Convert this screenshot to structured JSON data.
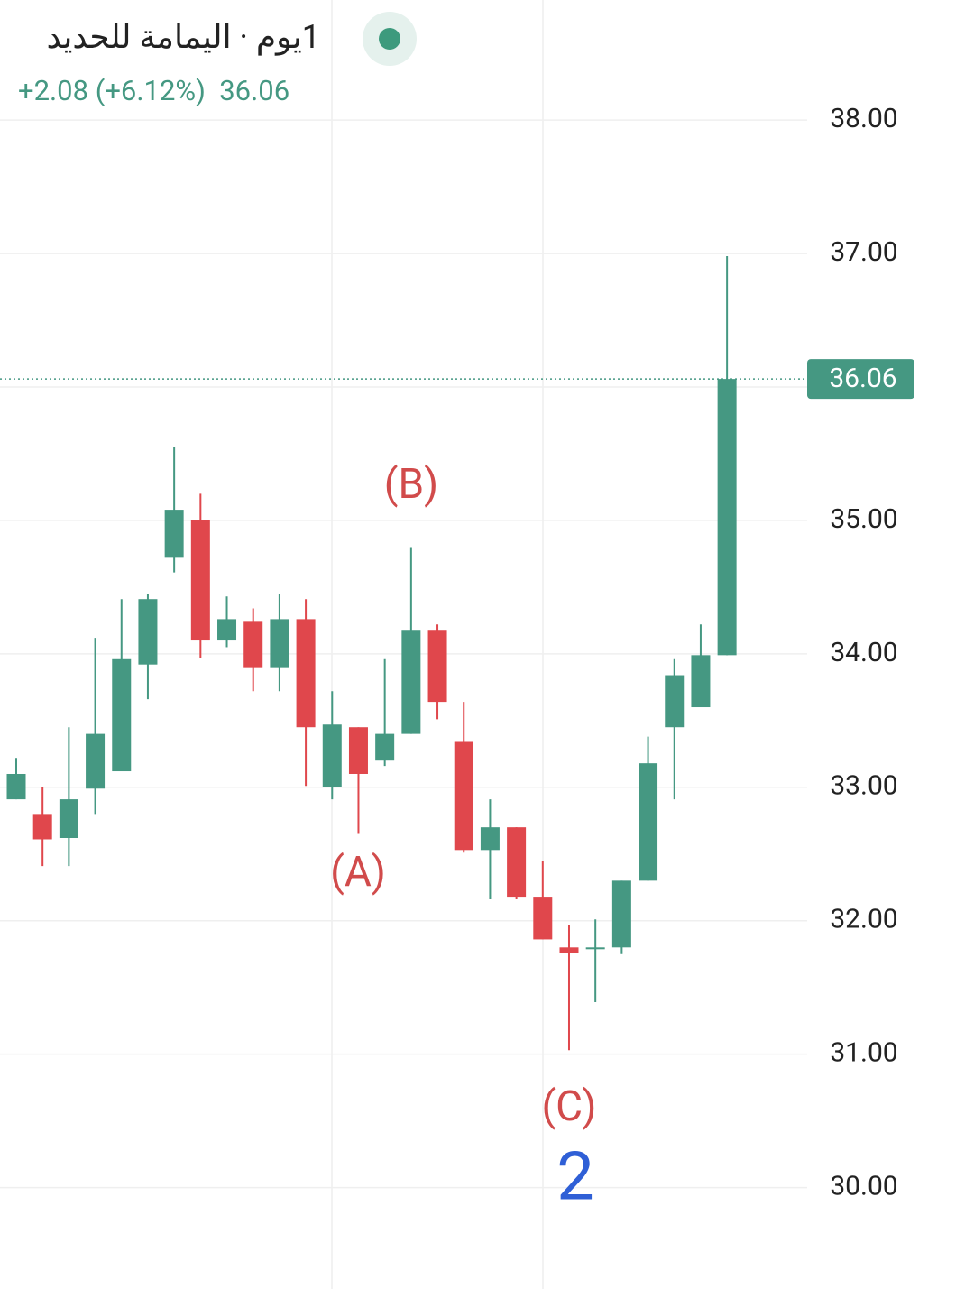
{
  "chart_data": {
    "type": "candlestick",
    "title": "1يوم · اليمامة للحديد",
    "change": "+2.08 (+6.12%)",
    "last_price": {
      "value": 36.06,
      "label": "36.06"
    },
    "open": [
      32.91,
      32.8,
      32.62,
      32.99,
      33.12,
      33.92,
      34.72,
      35.0,
      34.1,
      34.24,
      33.9,
      34.26,
      33.0,
      33.45,
      33.2,
      33.4,
      34.18,
      33.34,
      32.53,
      32.7,
      32.18,
      31.8,
      31.8,
      31.8,
      32.3,
      33.45,
      33.6,
      33.99
    ],
    "high": [
      33.22,
      33.0,
      33.45,
      34.12,
      34.41,
      34.45,
      35.55,
      35.2,
      34.43,
      34.34,
      34.45,
      34.41,
      33.72,
      33.45,
      33.96,
      34.8,
      34.22,
      33.64,
      32.91,
      32.7,
      32.45,
      31.97,
      32.01,
      32.3,
      33.38,
      33.96,
      34.22,
      36.98
    ],
    "low": [
      32.91,
      32.41,
      32.41,
      32.8,
      33.12,
      33.66,
      34.61,
      33.97,
      34.05,
      33.72,
      33.72,
      33.01,
      32.91,
      32.65,
      33.16,
      33.4,
      33.51,
      32.51,
      32.16,
      32.16,
      31.86,
      31.03,
      31.39,
      31.75,
      32.3,
      32.91,
      33.6,
      33.99
    ],
    "close": [
      33.1,
      32.61,
      32.91,
      33.4,
      33.96,
      34.41,
      35.08,
      34.1,
      34.26,
      33.9,
      34.26,
      33.45,
      33.47,
      33.1,
      33.4,
      34.18,
      33.64,
      32.53,
      32.7,
      32.18,
      31.86,
      31.76,
      31.8,
      32.3,
      33.18,
      33.84,
      33.99,
      36.06
    ],
    "up_color": "#459882",
    "down_color": "#e0474c",
    "ylim": [
      29.24,
      38.9
    ],
    "yticks": [
      {
        "value": 30,
        "label": "30.00"
      },
      {
        "value": 31,
        "label": "31.00"
      },
      {
        "value": 32,
        "label": "32.00"
      },
      {
        "value": 33,
        "label": "33.00"
      },
      {
        "value": 34,
        "label": "34.00"
      },
      {
        "value": 35,
        "label": "35.00"
      },
      {
        "value": 36,
        "label": "36.00"
      },
      {
        "value": 37,
        "label": "37.00"
      },
      {
        "value": 38,
        "label": "38.00"
      }
    ],
    "grid": true,
    "annotations": [
      {
        "text": "(A)",
        "color": "#d14b4b"
      },
      {
        "text": "(B)",
        "color": "#d14b4b"
      },
      {
        "text": "(C)",
        "color": "#d14b4b"
      },
      {
        "text": "2",
        "color": "#2f5fd6"
      }
    ]
  }
}
